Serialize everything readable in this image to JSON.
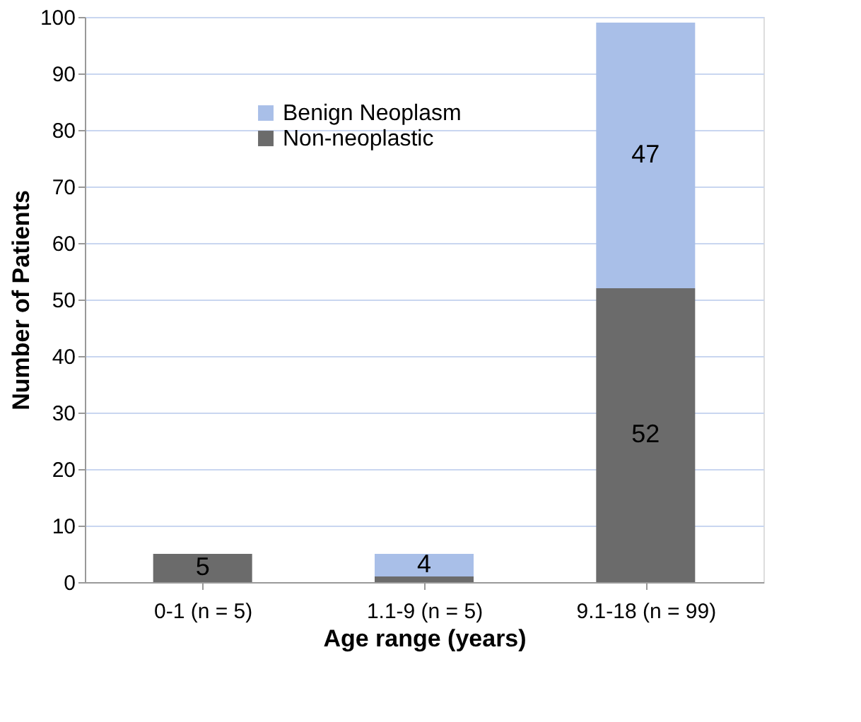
{
  "chart_data": {
    "type": "bar",
    "stacked": true,
    "xlabel": "Age range (years)",
    "ylabel": "Number of Patients",
    "categories": [
      "0-1 (n = 5)",
      "1.1-9 (n = 5)",
      "9.1-18  (n = 99)"
    ],
    "series": [
      {
        "name": "Non-neoplastic",
        "color": "#6b6b6b",
        "values": [
          5,
          1,
          52
        ],
        "value_labels": [
          "5",
          null,
          "52"
        ]
      },
      {
        "name": "Benign Neoplasm",
        "color": "#a9bfe8",
        "values": [
          0,
          4,
          47
        ],
        "value_labels": [
          null,
          "4",
          "47"
        ]
      }
    ],
    "ylim": [
      0,
      100
    ],
    "yticks": [
      0,
      10,
      20,
      30,
      40,
      50,
      60,
      70,
      80,
      90,
      100
    ],
    "grid": "y",
    "legend": "top left"
  }
}
